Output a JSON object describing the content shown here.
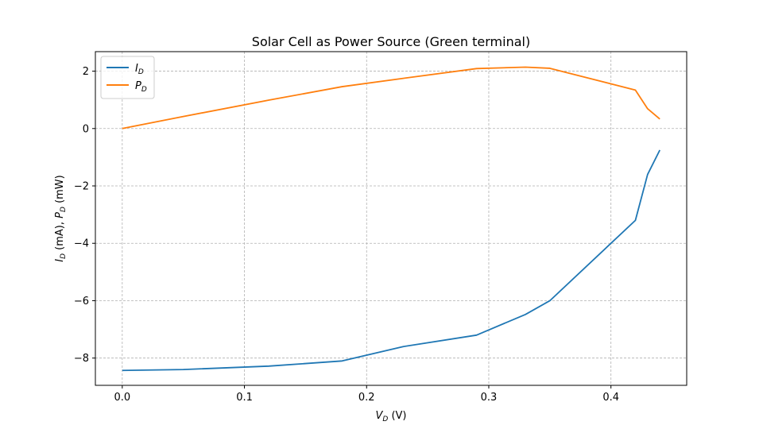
{
  "chart_data": {
    "type": "line",
    "title": "Solar Cell as Power Source (Green terminal)",
    "xlabel_main": "V",
    "xlabel_sub": "D",
    "xlabel_unit": " (V)",
    "ylabel_parts": {
      "i_main": "I",
      "i_sub": "D",
      "i_unit": " (mA), ",
      "p_main": "P",
      "p_sub": "D",
      "p_unit": " (mW)"
    },
    "xlim": [
      -0.022,
      0.462
    ],
    "ylim": [
      -8.95,
      2.68
    ],
    "xticks": [
      0.0,
      0.1,
      0.2,
      0.3,
      0.4
    ],
    "xtick_labels": [
      "0.0",
      "0.1",
      "0.2",
      "0.3",
      "0.4"
    ],
    "yticks": [
      -8,
      -6,
      -4,
      -2,
      0,
      2
    ],
    "ytick_labels": [
      "−8",
      "−6",
      "−4",
      "−2",
      "0",
      "2"
    ],
    "grid": true,
    "legend_position": "top-left",
    "series": [
      {
        "name_main": "I",
        "name_sub": "D",
        "color": "#1f77b4",
        "x": [
          0.0,
          0.05,
          0.12,
          0.18,
          0.23,
          0.29,
          0.33,
          0.35,
          0.42,
          0.43,
          0.44
        ],
        "y": [
          -8.43,
          -8.4,
          -8.28,
          -8.1,
          -7.6,
          -7.2,
          -6.48,
          -6.0,
          -3.2,
          -1.6,
          -0.75
        ]
      },
      {
        "name_main": "P",
        "name_sub": "D",
        "color": "#ff7f0e",
        "x": [
          0.0,
          0.05,
          0.12,
          0.18,
          0.23,
          0.29,
          0.33,
          0.35,
          0.42,
          0.43,
          0.44
        ],
        "y": [
          0.0,
          0.42,
          0.99,
          1.46,
          1.75,
          2.09,
          2.14,
          2.1,
          1.34,
          0.69,
          0.33
        ]
      }
    ]
  }
}
